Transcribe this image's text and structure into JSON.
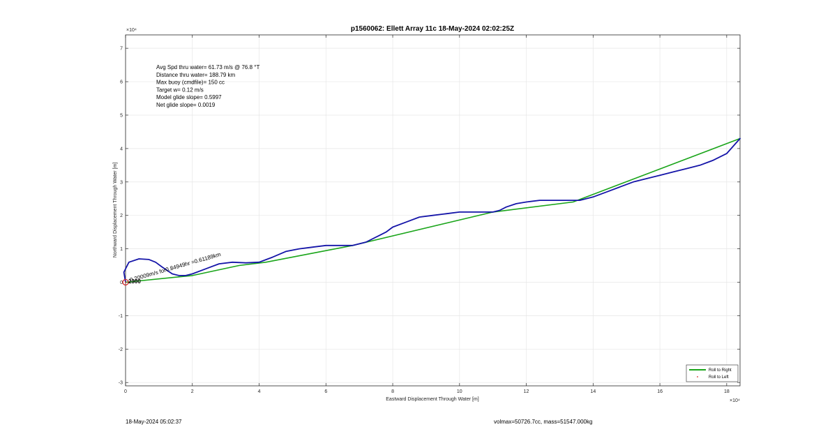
{
  "chart_data": {
    "type": "line",
    "title": "p1560062: Ellett Array 11c 18-May-2024 02:02:25Z",
    "xlabel": "Eastward Displacement Through Water [m]",
    "ylabel": "Northward Displacement Through Water [m]",
    "x_exponent": "×10⁴",
    "y_exponent": "×10⁴",
    "xlim": [
      0,
      184000
    ],
    "ylim": [
      -31000,
      74000
    ],
    "xticks": [
      0,
      20000,
      40000,
      60000,
      80000,
      100000,
      120000,
      140000,
      160000,
      180000
    ],
    "xtick_labels": [
      "0",
      "2",
      "4",
      "6",
      "8",
      "10",
      "12",
      "14",
      "16",
      "18"
    ],
    "yticks": [
      -30000,
      -20000,
      -10000,
      0,
      10000,
      20000,
      30000,
      40000,
      50000,
      60000,
      70000
    ],
    "ytick_labels": [
      "-3",
      "-2",
      "-1",
      "0",
      "1",
      "2",
      "3",
      "4",
      "5",
      "6",
      "7"
    ],
    "grid": true,
    "legend_position": "bottom-right",
    "annotations": [
      "Avg Spd thru water= 61.73 m/s @  76.8 °T",
      "Distance thru water= 188.79 km",
      "Max buoy (cmdfile)= 150 cc",
      "Target w= 0.12 m/s",
      "Model glide slope= 0.5997",
      "Net glide slope= 0.0019"
    ],
    "rotated_annotation": "0.20009m/s for0.84949hr =0.61189km",
    "start_label": "2300",
    "series": [
      {
        "name": "Roll to Right",
        "color": "#1aa51a",
        "x": [
          0,
          20000,
          34000,
          42000,
          68000,
          110000,
          134000,
          184000
        ],
        "y": [
          0,
          2000,
          5000,
          6000,
          11000,
          21000,
          24000,
          43000
        ]
      },
      {
        "name": "Roll to Left",
        "color": "#d62828",
        "marker": "dot",
        "x": [
          0
        ],
        "y": [
          0
        ]
      },
      {
        "name": "",
        "color": "#1414a8",
        "x": [
          0,
          -500,
          1000,
          4000,
          7000,
          9000,
          11000,
          14000,
          16000,
          18000,
          20000,
          24000,
          28000,
          32000,
          36000,
          40000,
          44000,
          48000,
          52000,
          56000,
          60000,
          64000,
          68000,
          72000,
          76000,
          78000,
          80000,
          84000,
          88000,
          92000,
          96000,
          100000,
          104000,
          108000,
          110000,
          112000,
          114000,
          117000,
          120000,
          124000,
          128000,
          132000,
          136000,
          140000,
          144000,
          148000,
          152000,
          156000,
          160000,
          164000,
          168000,
          172000,
          176000,
          180000,
          184000
        ],
        "y": [
          0,
          3000,
          6000,
          7000,
          6800,
          6000,
          4500,
          2500,
          2000,
          2000,
          2500,
          4000,
          5500,
          6000,
          5800,
          6000,
          7500,
          9200,
          10000,
          10500,
          11000,
          11000,
          11000,
          12000,
          14000,
          15000,
          16500,
          18000,
          19500,
          20000,
          20500,
          21000,
          21000,
          21000,
          21000,
          21500,
          22500,
          23500,
          24000,
          24500,
          24500,
          24500,
          24500,
          25500,
          27000,
          28500,
          30000,
          31000,
          32000,
          33000,
          34000,
          35000,
          36500,
          38500,
          43000
        ]
      }
    ]
  },
  "footer": {
    "timestamp": "18-May-2024 05:02:37",
    "volmax": "volmax=50726.7cc, mass=51547.000kg"
  }
}
